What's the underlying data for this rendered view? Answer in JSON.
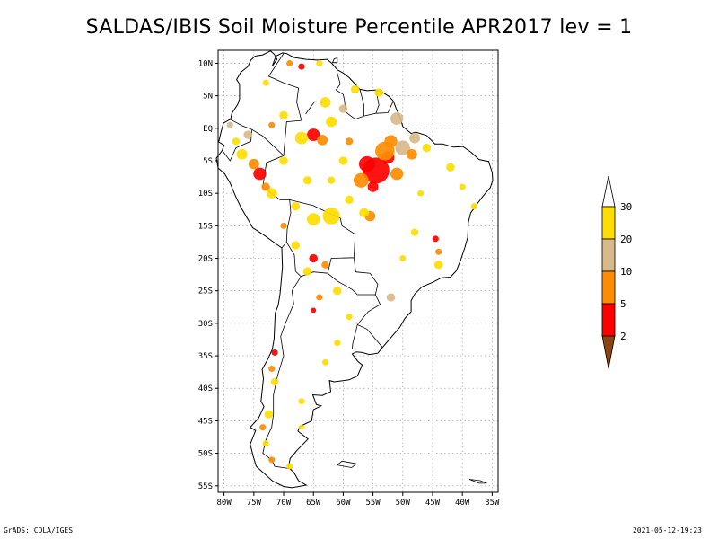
{
  "title": "SALDAS/IBIS Soil Moisture Percentile APR2017 lev = 1",
  "footer": {
    "left": "GrADS: COLA/IGES",
    "right": "2021-05-12-19:23"
  },
  "map": {
    "lon_range": [
      -81,
      -34
    ],
    "lat_range": [
      -56,
      12
    ],
    "lon_ticks": [
      {
        "value": -80,
        "label": "80W"
      },
      {
        "value": -75,
        "label": "75W"
      },
      {
        "value": -70,
        "label": "70W"
      },
      {
        "value": -65,
        "label": "65W"
      },
      {
        "value": -60,
        "label": "60W"
      },
      {
        "value": -55,
        "label": "55W"
      },
      {
        "value": -50,
        "label": "50W"
      },
      {
        "value": -45,
        "label": "45W"
      },
      {
        "value": -40,
        "label": "40W"
      },
      {
        "value": -35,
        "label": "35W"
      }
    ],
    "lat_ticks": [
      {
        "value": 10,
        "label": "10N"
      },
      {
        "value": 5,
        "label": "5N"
      },
      {
        "value": 0,
        "label": "EQ"
      },
      {
        "value": -5,
        "label": "5S"
      },
      {
        "value": -10,
        "label": "10S"
      },
      {
        "value": -15,
        "label": "15S"
      },
      {
        "value": -20,
        "label": "20S"
      },
      {
        "value": -25,
        "label": "25S"
      },
      {
        "value": -30,
        "label": "30S"
      },
      {
        "value": -35,
        "label": "35S"
      },
      {
        "value": -40,
        "label": "40S"
      },
      {
        "value": -45,
        "label": "45S"
      },
      {
        "value": -50,
        "label": "50S"
      },
      {
        "value": -55,
        "label": "55S"
      }
    ],
    "gridlines": true
  },
  "legend": {
    "bins": [
      {
        "color": "#ffffff",
        "from": 30,
        "to": null
      },
      {
        "color": "#ffdd00",
        "from": 20,
        "to": 30
      },
      {
        "color": "#d9b98a",
        "from": 10,
        "to": 20
      },
      {
        "color": "#ff8c00",
        "from": 5,
        "to": 10
      },
      {
        "color": "#ff0000",
        "from": 2,
        "to": 5
      },
      {
        "color": "#8b4513",
        "from": null,
        "to": 2
      }
    ],
    "labels": [
      "30",
      "20",
      "10",
      "5",
      "2"
    ]
  },
  "anomalies": [
    {
      "lon": -54.5,
      "lat": -6.5,
      "cat": "red",
      "size": 2.5
    },
    {
      "lon": -56,
      "lat": -5.5,
      "cat": "red",
      "size": 1.5
    },
    {
      "lon": -52.5,
      "lat": -4.5,
      "cat": "red",
      "size": 1.2
    },
    {
      "lon": -55,
      "lat": -9,
      "cat": "red",
      "size": 1.0
    },
    {
      "lon": -53,
      "lat": -3.5,
      "cat": "orange",
      "size": 1.8
    },
    {
      "lon": -57,
      "lat": -8,
      "cat": "orange",
      "size": 1.4
    },
    {
      "lon": -51,
      "lat": -7,
      "cat": "orange",
      "size": 1.2
    },
    {
      "lon": -50,
      "lat": -3,
      "cat": "tan",
      "size": 1.4
    },
    {
      "lon": -48,
      "lat": -1.5,
      "cat": "tan",
      "size": 1.0
    },
    {
      "lon": -52,
      "lat": -2,
      "cat": "orange",
      "size": 1.2
    },
    {
      "lon": -65,
      "lat": -1,
      "cat": "red",
      "size": 1.2
    },
    {
      "lon": -63.5,
      "lat": -1.8,
      "cat": "orange",
      "size": 1.0
    },
    {
      "lon": -67,
      "lat": -1.5,
      "cat": "yellow",
      "size": 1.2
    },
    {
      "lon": -62,
      "lat": 1,
      "cat": "yellow",
      "size": 1.0
    },
    {
      "lon": -63,
      "lat": 4,
      "cat": "yellow",
      "size": 1.0
    },
    {
      "lon": -60,
      "lat": 3,
      "cat": "tan",
      "size": 0.8
    },
    {
      "lon": -58,
      "lat": 6,
      "cat": "yellow",
      "size": 0.8
    },
    {
      "lon": -54,
      "lat": 5.5,
      "cat": "yellow",
      "size": 0.8
    },
    {
      "lon": -51,
      "lat": 1.5,
      "cat": "tan",
      "size": 1.2
    },
    {
      "lon": -48.5,
      "lat": -4,
      "cat": "orange",
      "size": 1.0
    },
    {
      "lon": -46,
      "lat": -3,
      "cat": "yellow",
      "size": 0.8
    },
    {
      "lon": -42,
      "lat": -6,
      "cat": "yellow",
      "size": 0.8
    },
    {
      "lon": -74,
      "lat": -7,
      "cat": "red",
      "size": 1.2
    },
    {
      "lon": -75,
      "lat": -5.5,
      "cat": "orange",
      "size": 1.0
    },
    {
      "lon": -73,
      "lat": -9,
      "cat": "orange",
      "size": 0.8
    },
    {
      "lon": -72,
      "lat": -10,
      "cat": "yellow",
      "size": 1.0
    },
    {
      "lon": -77,
      "lat": -4,
      "cat": "yellow",
      "size": 1.0
    },
    {
      "lon": -76,
      "lat": -1,
      "cat": "tan",
      "size": 0.8
    },
    {
      "lon": -72,
      "lat": 0.5,
      "cat": "orange",
      "size": 0.6
    },
    {
      "lon": -70,
      "lat": 2,
      "cat": "yellow",
      "size": 0.8
    },
    {
      "lon": -67,
      "lat": 9.5,
      "cat": "red",
      "size": 0.6
    },
    {
      "lon": -69,
      "lat": 10,
      "cat": "orange",
      "size": 0.6
    },
    {
      "lon": -64,
      "lat": 10,
      "cat": "yellow",
      "size": 0.6
    },
    {
      "lon": -73,
      "lat": 7,
      "cat": "yellow",
      "size": 0.6
    },
    {
      "lon": -62,
      "lat": -13.5,
      "cat": "yellow",
      "size": 1.6
    },
    {
      "lon": -65,
      "lat": -14,
      "cat": "yellow",
      "size": 1.2
    },
    {
      "lon": -68,
      "lat": -12,
      "cat": "yellow",
      "size": 0.8
    },
    {
      "lon": -55.5,
      "lat": -13.5,
      "cat": "orange",
      "size": 1.0
    },
    {
      "lon": -56.5,
      "lat": -13,
      "cat": "yellow",
      "size": 0.9
    },
    {
      "lon": -59,
      "lat": -11,
      "cat": "yellow",
      "size": 0.8
    },
    {
      "lon": -48,
      "lat": -16,
      "cat": "yellow",
      "size": 0.7
    },
    {
      "lon": -44.5,
      "lat": -17,
      "cat": "red",
      "size": 0.6
    },
    {
      "lon": -44,
      "lat": -19,
      "cat": "orange",
      "size": 0.6
    },
    {
      "lon": -44,
      "lat": -21,
      "cat": "yellow",
      "size": 0.8
    },
    {
      "lon": -50,
      "lat": -20,
      "cat": "yellow",
      "size": 0.6
    },
    {
      "lon": -65,
      "lat": -20,
      "cat": "red",
      "size": 0.8
    },
    {
      "lon": -63,
      "lat": -21,
      "cat": "orange",
      "size": 0.7
    },
    {
      "lon": -66,
      "lat": -22,
      "cat": "yellow",
      "size": 0.8
    },
    {
      "lon": -68,
      "lat": -18,
      "cat": "yellow",
      "size": 0.8
    },
    {
      "lon": -70,
      "lat": -15,
      "cat": "orange",
      "size": 0.6
    },
    {
      "lon": -61,
      "lat": -25,
      "cat": "yellow",
      "size": 0.8
    },
    {
      "lon": -64,
      "lat": -26,
      "cat": "orange",
      "size": 0.6
    },
    {
      "lon": -65,
      "lat": -28,
      "cat": "red",
      "size": 0.5
    },
    {
      "lon": -59,
      "lat": -29,
      "cat": "yellow",
      "size": 0.6
    },
    {
      "lon": -52,
      "lat": -26,
      "cat": "tan",
      "size": 0.8
    },
    {
      "lon": -61,
      "lat": -33,
      "cat": "yellow",
      "size": 0.6
    },
    {
      "lon": -63,
      "lat": -36,
      "cat": "yellow",
      "size": 0.6
    },
    {
      "lon": -71.5,
      "lat": -34.5,
      "cat": "red",
      "size": 0.6
    },
    {
      "lon": -72,
      "lat": -37,
      "cat": "orange",
      "size": 0.6
    },
    {
      "lon": -71.5,
      "lat": -39,
      "cat": "yellow",
      "size": 0.7
    },
    {
      "lon": -72.5,
      "lat": -44,
      "cat": "yellow",
      "size": 0.8
    },
    {
      "lon": -73.5,
      "lat": -46,
      "cat": "orange",
      "size": 0.6
    },
    {
      "lon": -73,
      "lat": -48.5,
      "cat": "yellow",
      "size": 0.6
    },
    {
      "lon": -72,
      "lat": -51,
      "cat": "orange",
      "size": 0.6
    },
    {
      "lon": -69,
      "lat": -52,
      "cat": "yellow",
      "size": 0.6
    },
    {
      "lon": -67,
      "lat": -42,
      "cat": "yellow",
      "size": 0.6
    },
    {
      "lon": -67,
      "lat": -46,
      "cat": "yellow",
      "size": 0.5
    },
    {
      "lon": -78,
      "lat": -2,
      "cat": "yellow",
      "size": 0.7
    },
    {
      "lon": -79,
      "lat": 0.5,
      "cat": "tan",
      "size": 0.6
    },
    {
      "lon": -70,
      "lat": -5,
      "cat": "yellow",
      "size": 0.8
    },
    {
      "lon": -66,
      "lat": -8,
      "cat": "yellow",
      "size": 0.8
    },
    {
      "lon": -60,
      "lat": -5,
      "cat": "yellow",
      "size": 0.8
    },
    {
      "lon": -62,
      "lat": -8,
      "cat": "yellow",
      "size": 0.7
    },
    {
      "lon": -59,
      "lat": -2,
      "cat": "orange",
      "size": 0.7
    },
    {
      "lon": -47,
      "lat": -10,
      "cat": "yellow",
      "size": 0.6
    },
    {
      "lon": -40,
      "lat": -9,
      "cat": "yellow",
      "size": 0.6
    },
    {
      "lon": -38,
      "lat": -12,
      "cat": "yellow",
      "size": 0.6
    }
  ]
}
